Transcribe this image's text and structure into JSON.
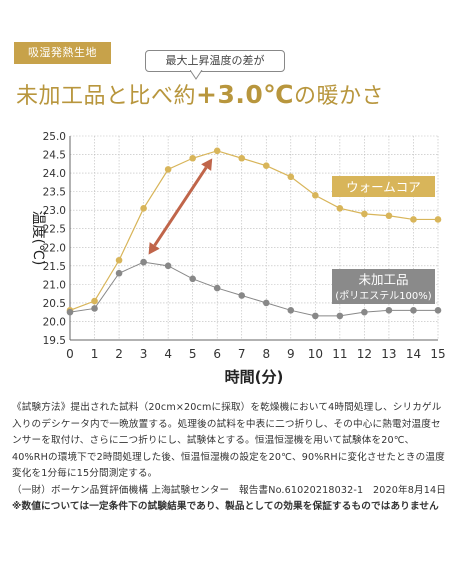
{
  "header": {
    "tag_label": "吸湿発熱生地",
    "bubble_text": "最大上昇温度の差が",
    "headline_prefix": "未加工品と比べ約",
    "headline_value": "+3.0℃",
    "headline_suffix": "の暖かさ"
  },
  "chart_data": {
    "type": "line",
    "title": "",
    "xlabel": "時間(分)",
    "ylabel": "温度(℃)",
    "x": [
      0,
      1,
      2,
      3,
      4,
      5,
      6,
      7,
      8,
      9,
      10,
      11,
      12,
      13,
      14,
      15
    ],
    "xlim": [
      0,
      15
    ],
    "ylim": [
      19.5,
      25.0
    ],
    "yticks": [
      "19.5",
      "20.0",
      "20.5",
      "21.0",
      "21.5",
      "22.0",
      "22.5",
      "23.0",
      "23.5",
      "24.0",
      "24.5",
      "25.0"
    ],
    "xticks": [
      "0",
      "1",
      "2",
      "3",
      "4",
      "5",
      "6",
      "7",
      "8",
      "9",
      "10",
      "11",
      "12",
      "13",
      "14",
      "15"
    ],
    "grid": true,
    "series": [
      {
        "name": "ウォームコア",
        "color": "#d8b55a",
        "values": [
          20.3,
          20.55,
          21.65,
          23.05,
          24.1,
          24.4,
          24.6,
          24.4,
          24.2,
          23.9,
          23.4,
          23.05,
          22.9,
          22.85,
          22.75,
          22.75
        ]
      },
      {
        "name": "未加工品",
        "name_sub": "(ポリエステル100%)",
        "color": "#888888",
        "values": [
          20.25,
          20.35,
          21.3,
          21.6,
          21.5,
          21.15,
          20.9,
          20.7,
          20.5,
          20.3,
          20.15,
          20.15,
          20.25,
          20.3,
          20.3,
          20.3
        ]
      }
    ],
    "arrow_color": "#c0654a"
  },
  "notes": {
    "line1": "《試験方法》提出された試料（20cm×20cmに採取）を乾燥機において4時間処理し、シリカゲル",
    "line2": "入りのデシケータ内で一晩放置する。処理後の試料を中表に二つ折りし、その中心に熱電対温度セ",
    "line3": "ンサーを取付け、さらに二つ折りにし、試験体とする。恒温恒湿機を用いて試験体を20℃、",
    "line4": "40%RHの環境下で2時間処理した後、恒温恒湿機の設定を20℃、90%RHに変化させたときの温度",
    "line5": "変化を1分毎に15分間測定する。",
    "line6": "（一財）ボーケン品質評価機構 上海試験センター　報告書No.61020218032-1　2020年8月14日",
    "line7": "※数値については一定条件下の試験結果であり、製品としての効果を保証するものではありません"
  }
}
